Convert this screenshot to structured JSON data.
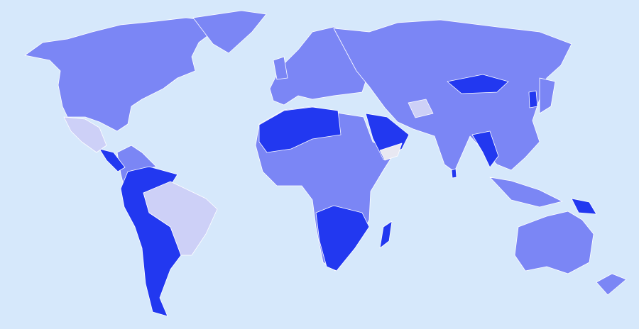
{
  "map": {
    "type": "choropleth",
    "projection": "world",
    "colors": {
      "ocean": "#d6e8fb",
      "category_medium": "#7b86f5",
      "category_dark": "#2238f0",
      "category_light": "#cdd0f7",
      "category_lightest": "#e8e8f2"
    }
  }
}
